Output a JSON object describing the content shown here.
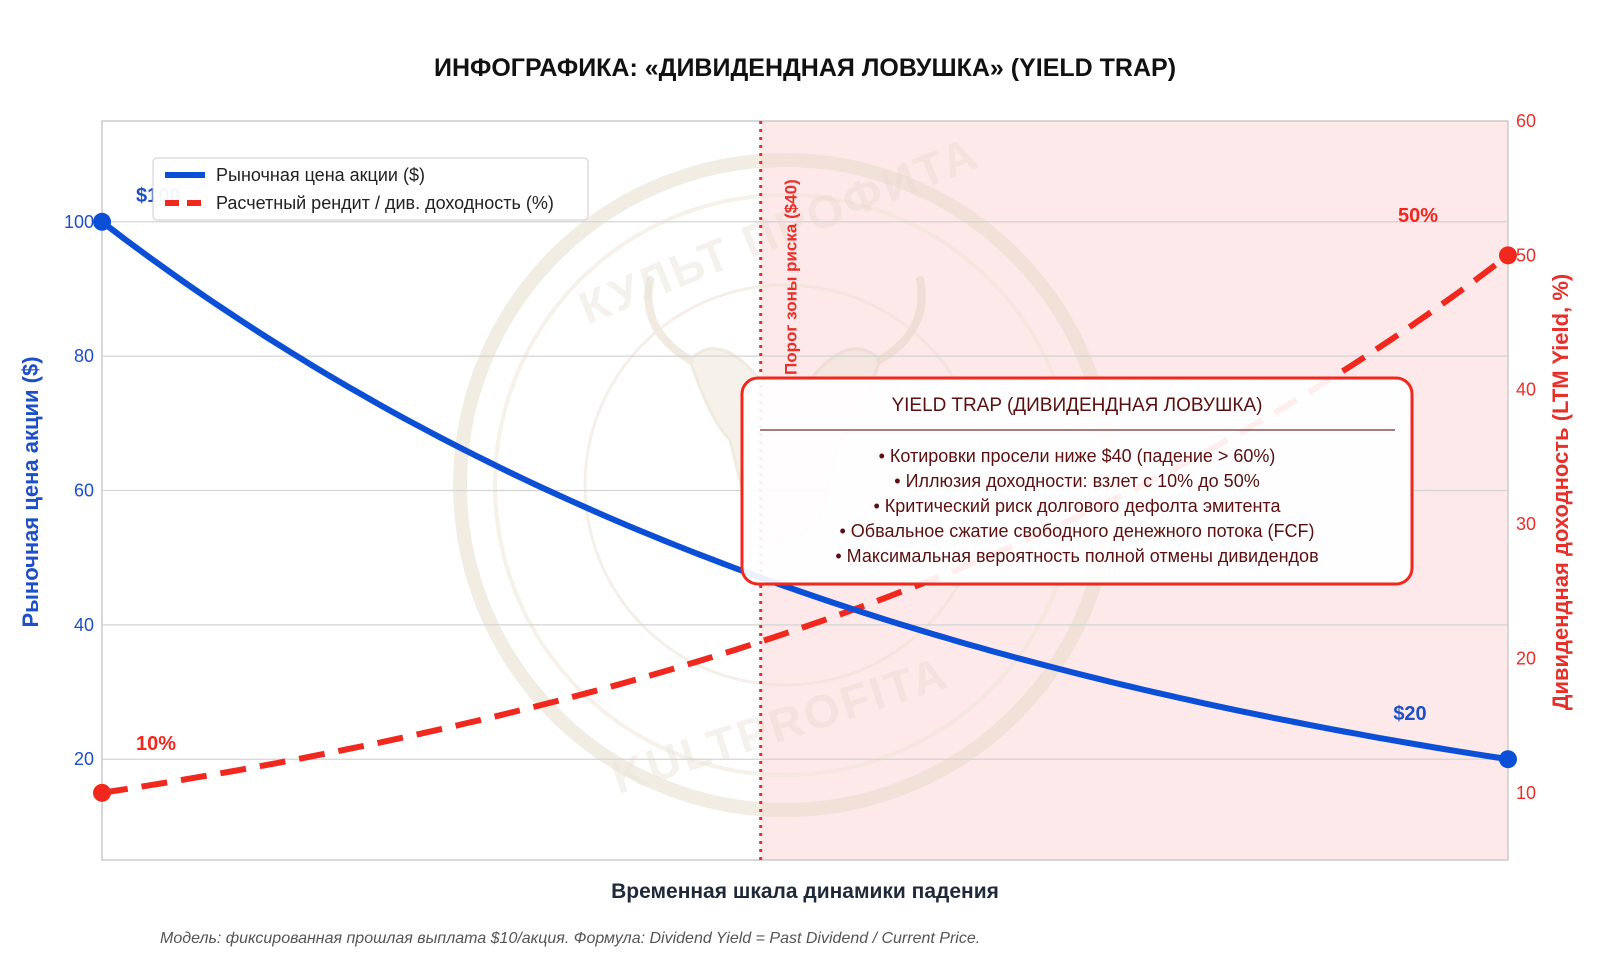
{
  "title": "ИНФОГРАФИКА: «ДИВИДЕНДНАЯ ЛОВУШКА» (YIELD TRAP)",
  "footnote": "Модель: фиксированная прошлая выплата $10/акция. Формула: Dividend Yield = Past Dividend / Current Price.",
  "watermark": {
    "top_text": "КУЛЬТ ПРОФИТА",
    "bottom_text": "KULTPROFITA"
  },
  "colors": {
    "price": "#0b4fd6",
    "yield": "#f0281e",
    "risk_zone": "#fde8ea",
    "threshold": "#e8302a",
    "box_border": "#f0281e"
  },
  "annotations": {
    "price_start": "$100",
    "price_end": "$20",
    "yield_start": "10%",
    "yield_end": "50%",
    "threshold_label": "Порог зоны риска ($40)"
  },
  "info_box": {
    "title": "YIELD TRAP (ДИВИДЕНДНАЯ ЛОВУШКА)",
    "lines": [
      "• Котировки просели ниже $40 (падение > 60%)",
      "• Иллюзия доходности: взлет с 10% до 50%",
      "• Критический риск долгового дефолта эмитента",
      "• Обвальное сжатие свободного денежного потока (FCF)",
      "• Максимальная вероятность полной отмены дивидендов"
    ]
  },
  "chart_data": {
    "type": "line",
    "title": "ИНФОГРАФИКА: «ДИВИДЕНДНАЯ ЛОВУШКА» (YIELD TRAP)",
    "xlabel": "Временная шкала динамики падения",
    "ylabel_left": "Рыночная цена акции ($)",
    "ylabel_right": "Дивидендная доходность (LTM Yield, %)",
    "x_range": [
      0,
      1
    ],
    "ylim_left": [
      5,
      115
    ],
    "ylim_right": [
      5,
      60
    ],
    "yticks_left": [
      20,
      40,
      60,
      80,
      100
    ],
    "yticks_right": [
      10,
      20,
      30,
      40,
      50,
      60
    ],
    "grid": true,
    "legend_position": "upper-left",
    "risk_zone_from_x": 0.4685,
    "risk_threshold_price": 40,
    "dividend_per_share": 10,
    "series": [
      {
        "name": "Рыночная цена акции ($)",
        "axis": "left",
        "style": "solid",
        "x": [
          0,
          0.1,
          0.2,
          0.3,
          0.4,
          0.4685,
          0.5,
          0.6,
          0.7,
          0.8,
          0.9,
          1.0
        ],
        "y": [
          100,
          85.1,
          72.5,
          61.7,
          52.5,
          40,
          38.0,
          33.3,
          29.1,
          25.5,
          22.5,
          20
        ]
      },
      {
        "name": "Расчетный рендит / див. доходность (%)",
        "axis": "right",
        "style": "dashed",
        "x": [
          0,
          0.1,
          0.2,
          0.3,
          0.4,
          0.4685,
          0.5,
          0.6,
          0.7,
          0.8,
          0.9,
          1.0
        ],
        "y": [
          10,
          11.8,
          13.8,
          16.2,
          19.0,
          25,
          26.3,
          30.0,
          34.4,
          39.2,
          44.4,
          50
        ]
      }
    ]
  }
}
